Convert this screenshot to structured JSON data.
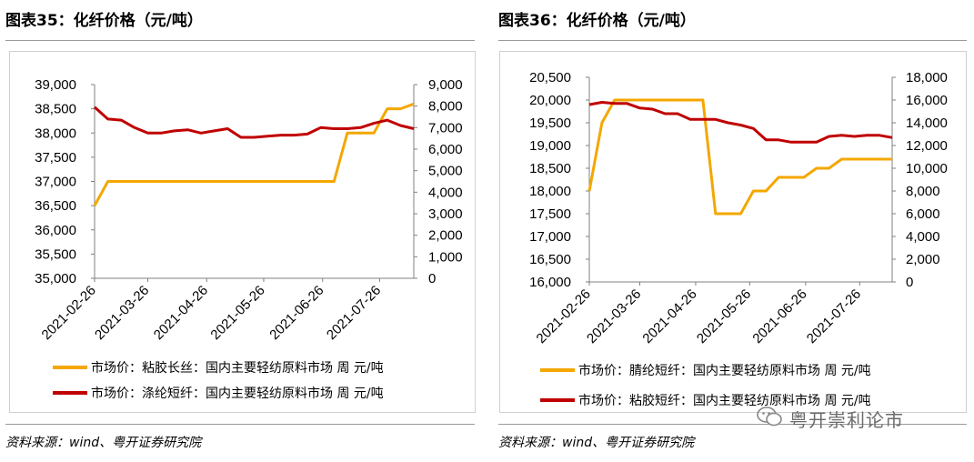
{
  "colors": {
    "series_yellow": "#F4A700",
    "series_red": "#C00000"
  },
  "panels": [
    {
      "title": "图表35：化纤价格（元/吨）",
      "source": "资料来源：wind、粤开证券研究院"
    },
    {
      "title": "图表36：化纤价格（元/吨）",
      "source": "资料来源：wind、粤开证券研究院"
    }
  ],
  "watermark": "粤开崇利论市",
  "chart_data": [
    {
      "type": "line",
      "title": "",
      "x_ticks": [
        "2021-02-26",
        "2021-03-26",
        "2021-04-26",
        "2021-05-26",
        "2021-06-26",
        "2021-07-26"
      ],
      "y_left": {
        "ylim": [
          35000,
          39000
        ],
        "ticks": [
          "35,000",
          "35,500",
          "36,000",
          "36,500",
          "37,000",
          "37,500",
          "38,000",
          "38,500",
          "39,000"
        ]
      },
      "y_right": {
        "ylim": [
          0,
          9000
        ],
        "ticks": [
          "0",
          "1,000",
          "2,000",
          "3,000",
          "4,000",
          "5,000",
          "6,000",
          "7,000",
          "8,000",
          "9,000"
        ]
      },
      "x": [
        "2021-02-26",
        "2021-03-05",
        "2021-03-12",
        "2021-03-19",
        "2021-03-26",
        "2021-04-02",
        "2021-04-09",
        "2021-04-16",
        "2021-04-23",
        "2021-04-30",
        "2021-05-07",
        "2021-05-14",
        "2021-05-21",
        "2021-05-28",
        "2021-06-04",
        "2021-06-11",
        "2021-06-18",
        "2021-06-25",
        "2021-07-02",
        "2021-07-09",
        "2021-07-16",
        "2021-07-23",
        "2021-07-30",
        "2021-08-06",
        "2021-08-13"
      ],
      "series": [
        {
          "name": "市场价：粘胶长丝：国内主要轻纺原料市场 周 元/吨",
          "axis": "left",
          "color": "#F4A700",
          "values": [
            36500,
            37000,
            37000,
            37000,
            37000,
            37000,
            37000,
            37000,
            37000,
            37000,
            37000,
            37000,
            37000,
            37000,
            37000,
            37000,
            37000,
            37000,
            37000,
            38000,
            38000,
            38000,
            38500,
            38500,
            38600
          ]
        },
        {
          "name": "市场价：涤纶短纤：国内主要轻纺原料市场 周 元/吨",
          "axis": "right",
          "color": "#C00000",
          "values": [
            7950,
            7400,
            7350,
            7000,
            6750,
            6750,
            6850,
            6900,
            6750,
            6850,
            6950,
            6550,
            6550,
            6600,
            6650,
            6650,
            6700,
            7000,
            6950,
            6950,
            7000,
            7200,
            7350,
            7100,
            6950
          ]
        }
      ]
    },
    {
      "type": "line",
      "title": "",
      "x_ticks": [
        "2021-02-26",
        "2021-03-26",
        "2021-04-26",
        "2021-05-26",
        "2021-06-26",
        "2021-07-26"
      ],
      "y_left": {
        "ylim": [
          16000,
          20500
        ],
        "ticks": [
          "16,000",
          "16,500",
          "17,000",
          "17,500",
          "18,000",
          "18,500",
          "19,000",
          "19,500",
          "20,000",
          "20,500"
        ]
      },
      "y_right": {
        "ylim": [
          0,
          18000
        ],
        "ticks": [
          "0",
          "2,000",
          "4,000",
          "6,000",
          "8,000",
          "10,000",
          "12,000",
          "14,000",
          "16,000",
          "18,000"
        ]
      },
      "x": [
        "2021-02-26",
        "2021-03-05",
        "2021-03-12",
        "2021-03-19",
        "2021-03-26",
        "2021-04-02",
        "2021-04-09",
        "2021-04-16",
        "2021-04-23",
        "2021-04-30",
        "2021-05-07",
        "2021-05-14",
        "2021-05-21",
        "2021-05-28",
        "2021-06-04",
        "2021-06-11",
        "2021-06-18",
        "2021-06-25",
        "2021-07-02",
        "2021-07-09",
        "2021-07-16",
        "2021-07-23",
        "2021-07-30",
        "2021-08-06",
        "2021-08-13"
      ],
      "series": [
        {
          "name": "市场价：腈纶短纤：国内主要轻纺原料市场 周 元/吨",
          "axis": "left",
          "color": "#F4A700",
          "values": [
            18000,
            19500,
            20000,
            20000,
            20000,
            20000,
            20000,
            20000,
            20000,
            20000,
            17500,
            17500,
            17500,
            18000,
            18000,
            18300,
            18300,
            18300,
            18500,
            18500,
            18700,
            18700,
            18700,
            18700,
            18700
          ]
        },
        {
          "name": "市场价：粘胶短纤：国内主要轻纺原料市场 周 元/吨",
          "axis": "right",
          "color": "#C00000",
          "values": [
            15600,
            15800,
            15700,
            15700,
            15300,
            15200,
            14800,
            14800,
            14300,
            14300,
            14300,
            14000,
            13800,
            13500,
            12500,
            12500,
            12300,
            12300,
            12300,
            12800,
            12900,
            12800,
            12900,
            12900,
            12700
          ]
        }
      ]
    }
  ]
}
